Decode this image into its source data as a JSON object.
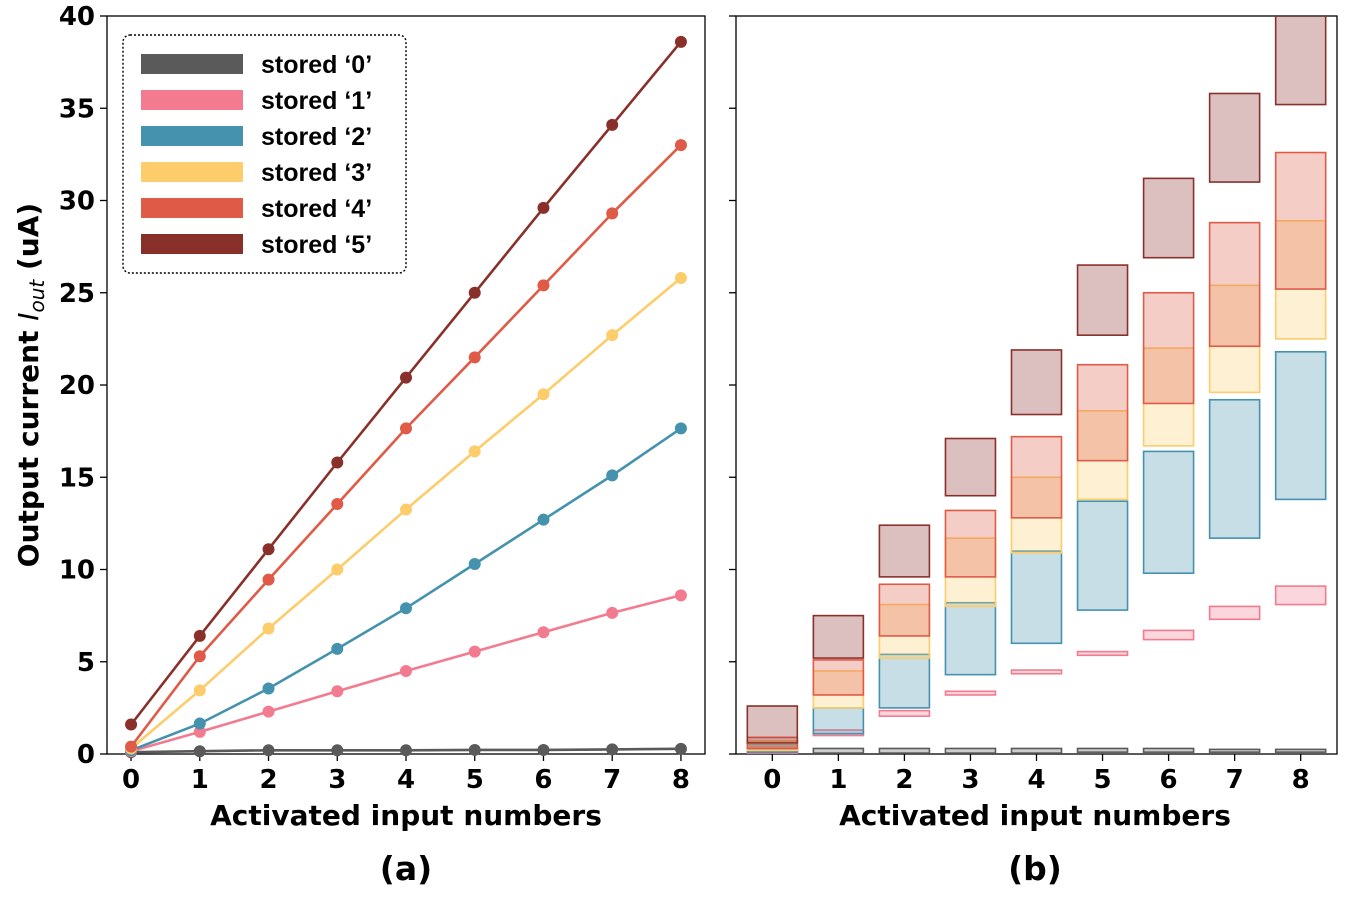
{
  "colors": {
    "stored_0": "#5a5a5a",
    "stored_1": "#f27b90",
    "stored_2": "#4592ae",
    "stored_3": "#fdcc6b",
    "stored_4": "#df5a47",
    "stored_5": "#8a302b"
  },
  "chart_data": [
    {
      "type": "line",
      "panel": "a",
      "caption": "(a)",
      "xlabel": "Activated input numbers",
      "ylabel_main": "Output current ",
      "ylabel_sym": "I",
      "ylabel_sub": "out",
      "ylabel_unit": " (uA)",
      "xlim": [
        -0.35,
        8.35
      ],
      "ylim": [
        0,
        40
      ],
      "x": [
        0,
        1,
        2,
        3,
        4,
        5,
        6,
        7,
        8
      ],
      "x_ticks": [
        "0",
        "1",
        "2",
        "3",
        "4",
        "5",
        "6",
        "7",
        "8"
      ],
      "y_ticks": [
        "0",
        "5",
        "10",
        "15",
        "20",
        "25",
        "30",
        "35",
        "40"
      ],
      "legend_position": "top-left",
      "series": [
        {
          "name": "stored ‘0’",
          "key": "stored_0",
          "values": [
            0.1,
            0.15,
            0.2,
            0.2,
            0.2,
            0.22,
            0.22,
            0.25,
            0.28
          ]
        },
        {
          "name": "stored ‘1’",
          "key": "stored_1",
          "values": [
            0.15,
            1.2,
            2.3,
            3.4,
            4.5,
            5.55,
            6.6,
            7.65,
            8.6
          ]
        },
        {
          "name": "stored ‘2’",
          "key": "stored_2",
          "values": [
            0.2,
            1.65,
            3.55,
            5.7,
            7.9,
            10.3,
            12.7,
            15.1,
            17.65
          ]
        },
        {
          "name": "stored ‘3’",
          "key": "stored_3",
          "values": [
            0.3,
            3.45,
            6.8,
            10.0,
            13.25,
            16.4,
            19.5,
            22.7,
            25.8
          ]
        },
        {
          "name": "stored ‘4’",
          "key": "stored_4",
          "values": [
            0.4,
            5.3,
            9.45,
            13.55,
            17.65,
            21.5,
            25.4,
            29.3,
            33.0
          ]
        },
        {
          "name": "stored ‘5’",
          "key": "stored_5",
          "values": [
            1.6,
            6.4,
            11.1,
            15.8,
            20.4,
            25.0,
            29.6,
            34.1,
            38.6
          ]
        }
      ]
    },
    {
      "type": "range-boxes",
      "panel": "b",
      "caption": "(b)",
      "xlabel": "Activated input numbers",
      "xlim": [
        -0.55,
        8.55
      ],
      "ylim": [
        0,
        40
      ],
      "x": [
        0,
        1,
        2,
        3,
        4,
        5,
        6,
        7,
        8
      ],
      "x_ticks": [
        "0",
        "1",
        "2",
        "3",
        "4",
        "5",
        "6",
        "7",
        "8"
      ],
      "series": [
        {
          "name": "stored ‘0’",
          "key": "stored_0",
          "ranges": [
            [
              0.05,
              0.3
            ],
            [
              0.05,
              0.3
            ],
            [
              0.05,
              0.3
            ],
            [
              0.05,
              0.3
            ],
            [
              0.05,
              0.3
            ],
            [
              0.1,
              0.3
            ],
            [
              0.1,
              0.3
            ],
            [
              0.1,
              0.25
            ],
            [
              0.1,
              0.25
            ]
          ]
        },
        {
          "name": "stored ‘1’",
          "key": "stored_1",
          "ranges": [
            [
              0.05,
              0.4
            ],
            [
              1.0,
              1.3
            ],
            [
              2.05,
              2.35
            ],
            [
              3.2,
              3.4
            ],
            [
              4.35,
              4.55
            ],
            [
              5.35,
              5.55
            ],
            [
              6.2,
              6.7
            ],
            [
              7.3,
              8.0
            ],
            [
              8.1,
              9.1
            ]
          ]
        },
        {
          "name": "stored ‘2’",
          "key": "stored_2",
          "ranges": [
            [
              0.1,
              0.5
            ],
            [
              1.1,
              2.5
            ],
            [
              2.5,
              5.4
            ],
            [
              4.3,
              8.2
            ],
            [
              6.0,
              11.0
            ],
            [
              7.8,
              13.7
            ],
            [
              9.8,
              16.4
            ],
            [
              11.7,
              19.2
            ],
            [
              13.8,
              21.8
            ]
          ]
        },
        {
          "name": "stored ‘3’",
          "key": "stored_3",
          "ranges": [
            [
              0.2,
              0.7
            ],
            [
              2.5,
              4.5
            ],
            [
              5.2,
              8.1
            ],
            [
              8.0,
              11.7
            ],
            [
              10.9,
              15.0
            ],
            [
              13.8,
              18.6
            ],
            [
              16.7,
              22.0
            ],
            [
              19.6,
              25.4
            ],
            [
              22.5,
              28.9
            ]
          ]
        },
        {
          "name": "stored ‘4’",
          "key": "stored_4",
          "ranges": [
            [
              0.3,
              0.9
            ],
            [
              3.2,
              5.1
            ],
            [
              6.4,
              9.2
            ],
            [
              9.6,
              13.2
            ],
            [
              12.8,
              17.2
            ],
            [
              15.9,
              21.1
            ],
            [
              19.0,
              25.0
            ],
            [
              22.1,
              28.8
            ],
            [
              25.2,
              32.6
            ]
          ]
        },
        {
          "name": "stored ‘5’",
          "key": "stored_5",
          "ranges": [
            [
              0.6,
              2.6
            ],
            [
              5.2,
              7.5
            ],
            [
              9.6,
              12.4
            ],
            [
              14.0,
              17.1
            ],
            [
              18.4,
              21.9
            ],
            [
              22.7,
              26.5
            ],
            [
              26.9,
              31.2
            ],
            [
              31.0,
              35.8
            ],
            [
              35.2,
              40.5
            ]
          ]
        }
      ]
    }
  ]
}
